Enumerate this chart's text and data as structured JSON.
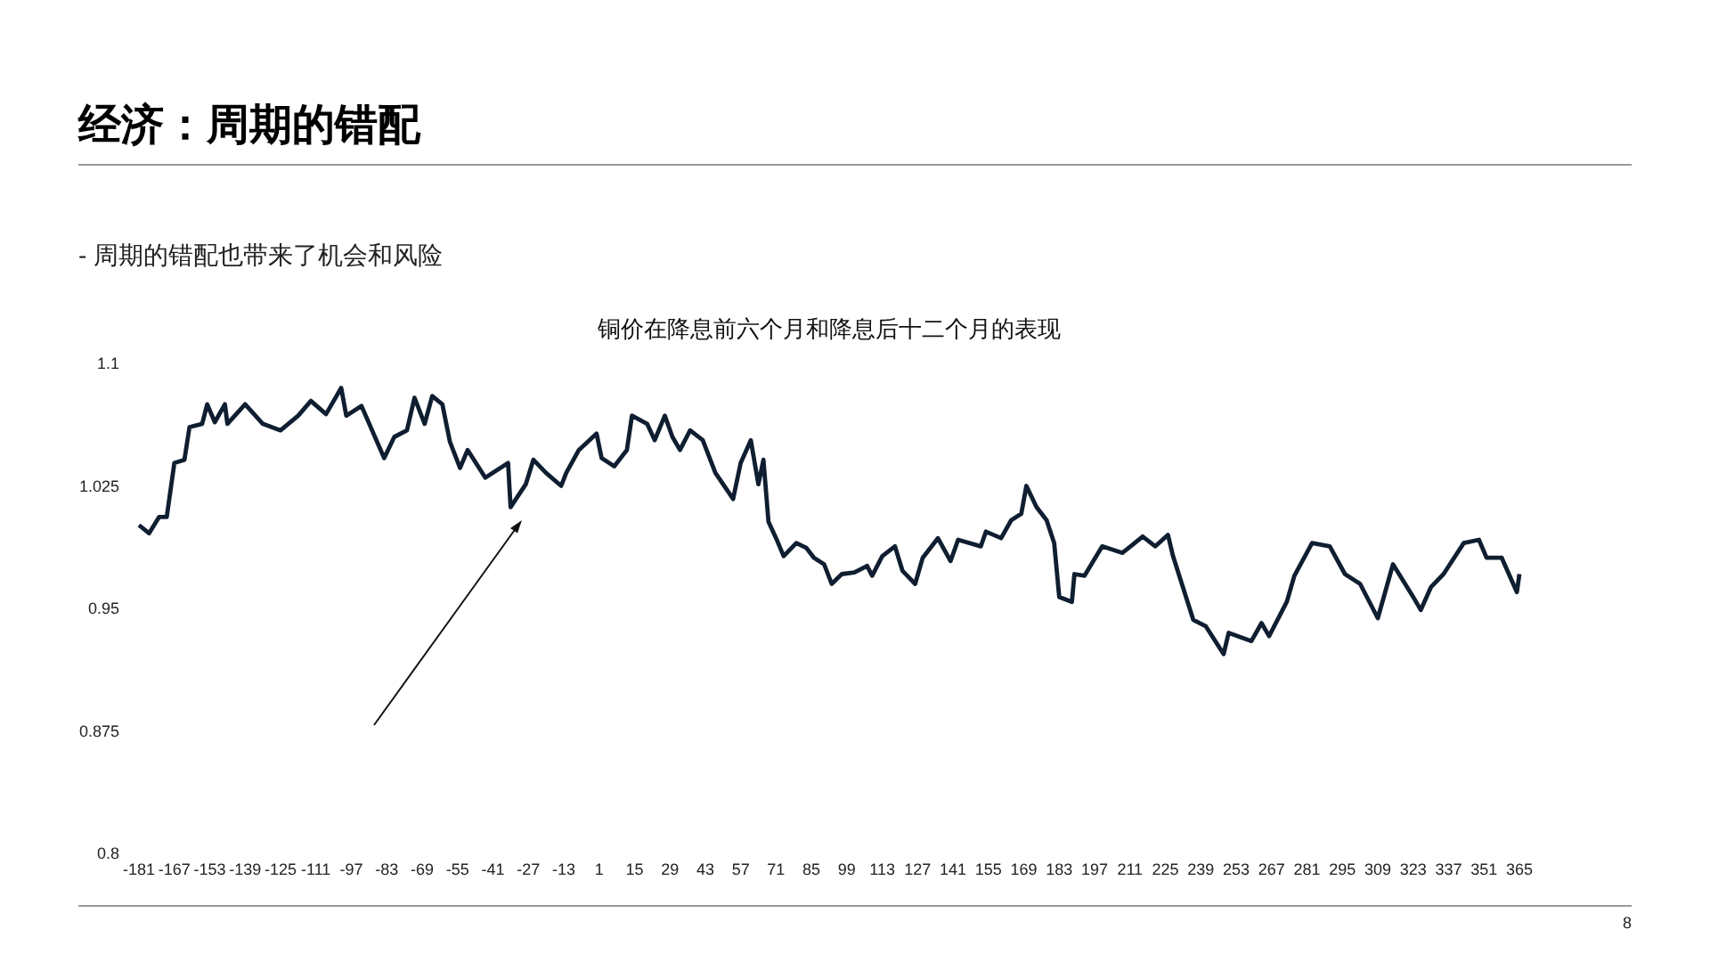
{
  "chart_data": {
    "type": "line",
    "title": "铜价在降息前六个月和降息后十二个月的表现",
    "annotations": [
      "经济：周期的错配",
      "-  周期的错配也带来了机会和风险",
      "8"
    ],
    "xlim": [
      -181,
      365
    ],
    "xticks": [
      -181,
      -167,
      -153,
      -139,
      -125,
      -111,
      -97,
      -83,
      -69,
      -55,
      -41,
      -27,
      -13,
      1,
      15,
      29,
      43,
      57,
      71,
      85,
      99,
      113,
      127,
      141,
      155,
      169,
      183,
      197,
      211,
      225,
      239,
      253,
      267,
      281,
      295,
      309,
      323,
      337,
      351,
      365
    ],
    "ylim": [
      0.8,
      1.1
    ],
    "yticks": [
      0.8,
      0.875,
      0.95,
      1.025,
      1.1
    ],
    "series": [
      {
        "color": "#0f1e30",
        "x": [
          -181,
          -177,
          -173,
          -170,
          -167,
          -163,
          -161,
          -156,
          -154,
          -151,
          -147,
          -146,
          -139,
          -132,
          -125,
          -118,
          -113,
          -107,
          -101,
          -99,
          -93,
          -84,
          -80,
          -75,
          -72,
          -68,
          -65,
          -61,
          -58,
          -54,
          -51,
          -44,
          -35,
          -34,
          -28,
          -25,
          -20,
          -14,
          -12,
          -7,
          0,
          2,
          7,
          12,
          14,
          20,
          23,
          27,
          30,
          33,
          37,
          42,
          47,
          54,
          57,
          61,
          64,
          66,
          68,
          71,
          74,
          79,
          83,
          86,
          90,
          93,
          97,
          102,
          107,
          109,
          113,
          118,
          121,
          126,
          129,
          135,
          140,
          143,
          152,
          154,
          160,
          164,
          168,
          170,
          174,
          178,
          181,
          183,
          188,
          189,
          193,
          200,
          208,
          216,
          221,
          226,
          228,
          236,
          241,
          248,
          250,
          259,
          263,
          266,
          273,
          276,
          283,
          290,
          296,
          302,
          309,
          315,
          323,
          326,
          330,
          335,
          343,
          349,
          352,
          358,
          364,
          365
        ],
        "values": [
          1.001,
          0.996,
          1.006,
          1.006,
          1.039,
          1.041,
          1.061,
          1.063,
          1.075,
          1.064,
          1.075,
          1.063,
          1.075,
          1.063,
          1.059,
          1.068,
          1.077,
          1.069,
          1.085,
          1.068,
          1.074,
          1.042,
          1.055,
          1.059,
          1.079,
          1.063,
          1.08,
          1.075,
          1.052,
          1.036,
          1.047,
          1.03,
          1.039,
          1.012,
          1.026,
          1.041,
          1.033,
          1.025,
          1.033,
          1.047,
          1.057,
          1.042,
          1.037,
          1.047,
          1.068,
          1.063,
          1.053,
          1.068,
          1.055,
          1.047,
          1.059,
          1.053,
          1.033,
          1.017,
          1.039,
          1.053,
          1.026,
          1.041,
          1.003,
          0.993,
          0.982,
          0.99,
          0.987,
          0.981,
          0.977,
          0.965,
          0.971,
          0.972,
          0.976,
          0.97,
          0.982,
          0.988,
          0.973,
          0.965,
          0.981,
          0.993,
          0.979,
          0.992,
          0.988,
          0.997,
          0.993,
          1.004,
          1.008,
          1.025,
          1.012,
          1.004,
          0.99,
          0.957,
          0.954,
          0.971,
          0.97,
          0.988,
          0.984,
          0.994,
          0.988,
          0.995,
          0.982,
          0.943,
          0.939,
          0.922,
          0.935,
          0.93,
          0.941,
          0.933,
          0.954,
          0.97,
          0.99,
          0.988,
          0.971,
          0.965,
          0.944,
          0.977,
          0.957,
          0.949,
          0.963,
          0.971,
          0.99,
          0.992,
          0.981,
          0.981,
          0.96,
          0.971
        ]
      }
    ]
  }
}
